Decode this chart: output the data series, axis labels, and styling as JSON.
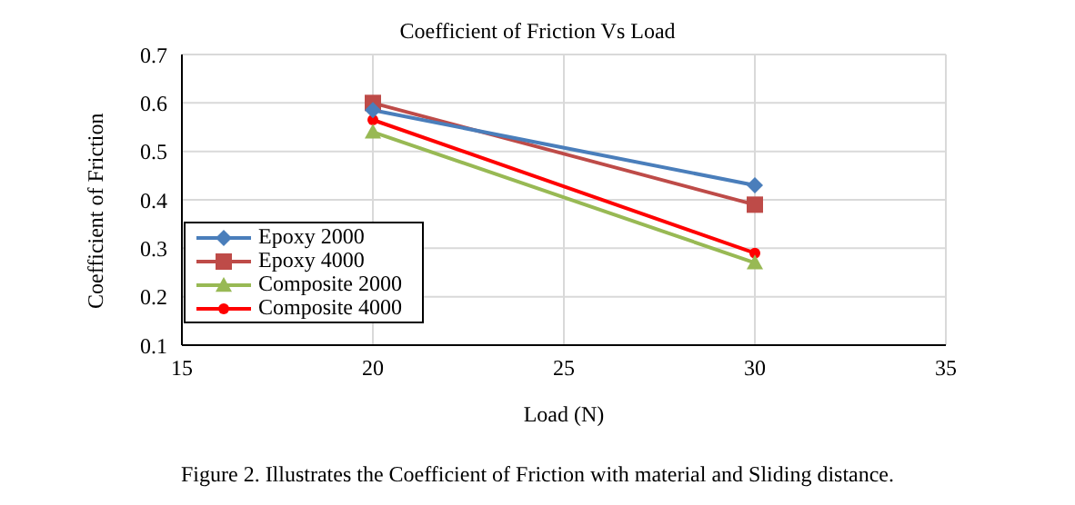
{
  "chart_data": {
    "type": "line",
    "title": "Coefficient of Friction Vs Load",
    "xlabel": "Load (N)",
    "ylabel": "Coefficient of Friction",
    "x": [
      20,
      30
    ],
    "series": [
      {
        "name": "Epoxy 2000",
        "color": "#4a7ebb",
        "values": [
          0.585,
          0.43
        ],
        "marker": "diamond"
      },
      {
        "name": "Epoxy 4000",
        "color": "#be4b48",
        "values": [
          0.6,
          0.39
        ],
        "marker": "square"
      },
      {
        "name": "Composite 2000",
        "color": "#98b954",
        "values": [
          0.54,
          0.27
        ],
        "marker": "triangle"
      },
      {
        "name": "Composite 4000",
        "color": "#ff0000",
        "values": [
          0.565,
          0.29
        ],
        "marker": "circle"
      }
    ],
    "xlim": [
      15,
      35
    ],
    "xticks": [
      15,
      20,
      25,
      30,
      35
    ],
    "ylim": [
      0.1,
      0.7
    ],
    "yticks": [
      0.1,
      0.2,
      0.3,
      0.4,
      0.5,
      0.6,
      0.7
    ],
    "grid": true,
    "legend": "bottom left",
    "line_style": "solid",
    "annotations": [
      "Figure 2. Illustrates the Coefficient of Friction with material and Sliding distance."
    ]
  }
}
